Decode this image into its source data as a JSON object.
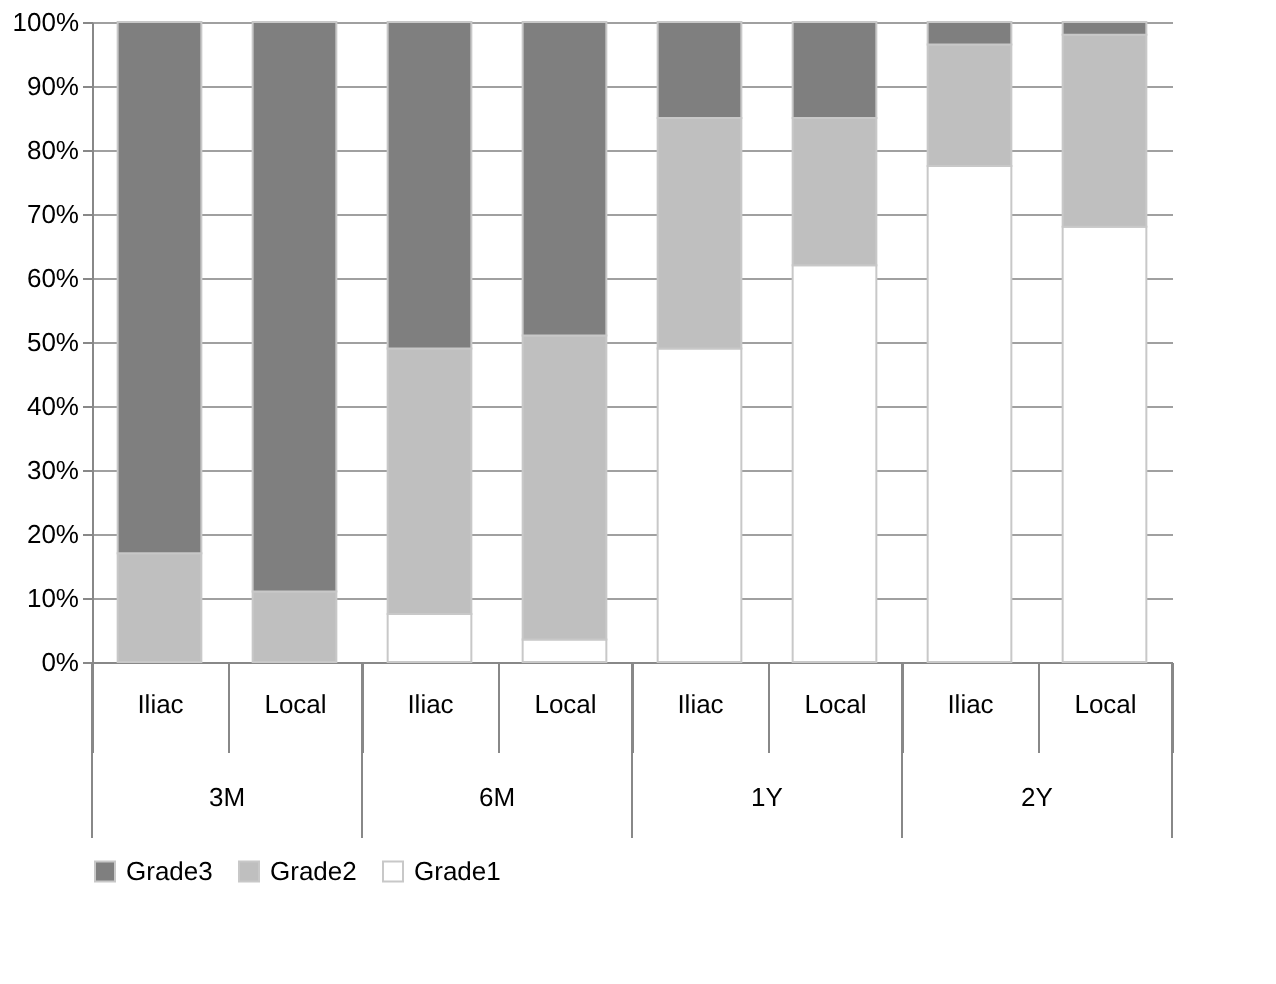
{
  "chart_data": {
    "type": "bar",
    "stacked": true,
    "categories": [
      "Iliac",
      "Local",
      "Iliac",
      "Local",
      "Iliac",
      "Local",
      "Iliac",
      "Local"
    ],
    "series": [
      {
        "name": "Grade1",
        "color": "#ffffff",
        "values": [
          0,
          0,
          7.5,
          3.5,
          49,
          62,
          77.5,
          68
        ]
      },
      {
        "name": "Grade2",
        "color": "#bfbfbf",
        "values": [
          17,
          11,
          41.5,
          47.5,
          36,
          23,
          19,
          30
        ]
      },
      {
        "name": "Grade3",
        "color": "#7f7f7f",
        "values": [
          83,
          89,
          51,
          49,
          15,
          15,
          3.5,
          2
        ]
      }
    ],
    "annotations": [
      "3M",
      "6M",
      "1Y",
      "2Y"
    ],
    "ylim": [
      0,
      100
    ],
    "yticks": [
      {
        "value": 0,
        "label": "0%"
      },
      {
        "value": 10,
        "label": "10%"
      },
      {
        "value": 20,
        "label": "20%"
      },
      {
        "value": 30,
        "label": "30%"
      },
      {
        "value": 40,
        "label": "40%"
      },
      {
        "value": 50,
        "label": "50%"
      },
      {
        "value": 60,
        "label": "60%"
      },
      {
        "value": 70,
        "label": "70%"
      },
      {
        "value": 80,
        "label": "80%"
      },
      {
        "value": 90,
        "label": "90%"
      },
      {
        "value": 100,
        "label": "100%"
      }
    ],
    "grid": "y",
    "legend": "bottom"
  }
}
